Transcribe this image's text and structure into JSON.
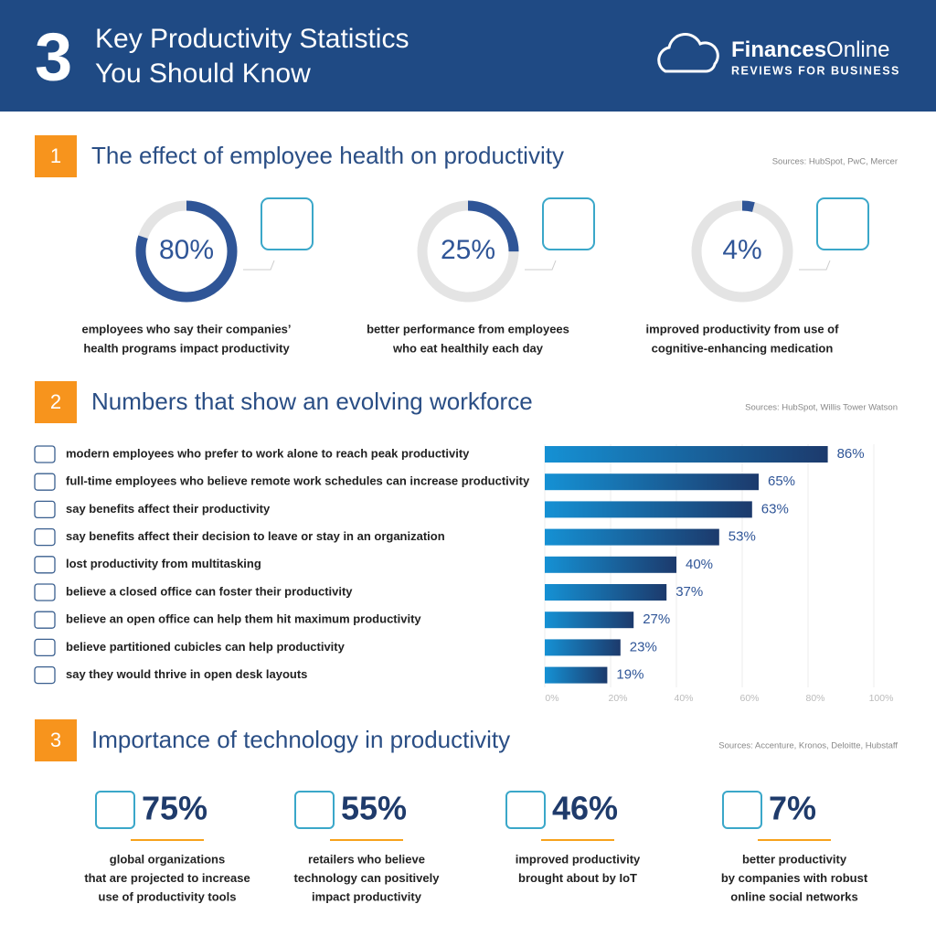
{
  "header": {
    "number": "3",
    "title_lines": [
      "Key Productivity Statistics",
      "You Should Know"
    ],
    "brand_bold": "Finances",
    "brand_light": "Online",
    "tagline": "REVIEWS FOR BUSINESS"
  },
  "section1": {
    "number": "1",
    "title": "The effect of employee health on productivity",
    "sources": "Sources: HubSpot, PwC, Mercer",
    "stats": [
      {
        "value": 80,
        "label": "80%",
        "caption": [
          "employees who say their companies’",
          "health programs impact productivity"
        ]
      },
      {
        "value": 25,
        "label": "25%",
        "caption": [
          "better performance from employees",
          "who eat healthily each day"
        ]
      },
      {
        "value": 4,
        "label": "4%",
        "caption": [
          "improved productivity from use of",
          "cognitive-enhancing medication"
        ]
      }
    ]
  },
  "section2": {
    "number": "2",
    "title": "Numbers that show an evolving workforce",
    "sources": "Sources: HubSpot, Willis Tower Watson"
  },
  "chart_data": {
    "type": "bar",
    "orientation": "horizontal",
    "categories": [
      "modern employees who prefer to work alone to reach peak productivity",
      "full-time employees who believe remote work schedules can increase productivity",
      "say benefits affect their productivity",
      "say benefits affect their decision to leave or stay in an organization",
      "lost productivity from multitasking",
      "believe a closed office can foster their productivity",
      "believe an open office can help them hit maximum productivity",
      "believe partitioned cubicles can help productivity",
      "say they would thrive in open desk layouts"
    ],
    "values": [
      86,
      65,
      63,
      53,
      40,
      37,
      27,
      23,
      19
    ],
    "value_labels": [
      "86%",
      "65%",
      "63%",
      "53%",
      "40%",
      "37%",
      "27%",
      "23%",
      "19%"
    ],
    "xlim": [
      0,
      100
    ],
    "xticks": [
      {
        "value": 0,
        "label": "0%"
      },
      {
        "value": 20,
        "label": "20%"
      },
      {
        "value": 40,
        "label": "40%"
      },
      {
        "value": 60,
        "label": "60%"
      },
      {
        "value": 80,
        "label": "80%"
      },
      {
        "value": 100,
        "label": "100%"
      }
    ],
    "grid": true,
    "colors": [
      "#1591d4",
      "#1c3a6c"
    ]
  },
  "section3": {
    "number": "3",
    "title": "Importance of technology in productivity",
    "sources": "Sources: Accenture, Kronos, Deloitte, Hubstaff",
    "stats": [
      {
        "label": "75%",
        "caption": [
          "global organizations",
          "that are projected to increase",
          "use of productivity tools"
        ]
      },
      {
        "label": "55%",
        "caption": [
          "retailers who believe",
          "technology can positively",
          "impact productivity"
        ]
      },
      {
        "label": "46%",
        "caption": [
          "improved productivity",
          "brought about by IoT"
        ]
      },
      {
        "label": "7%",
        "caption": [
          "better productivity",
          "by companies with robust",
          "online social networks"
        ]
      }
    ]
  }
}
